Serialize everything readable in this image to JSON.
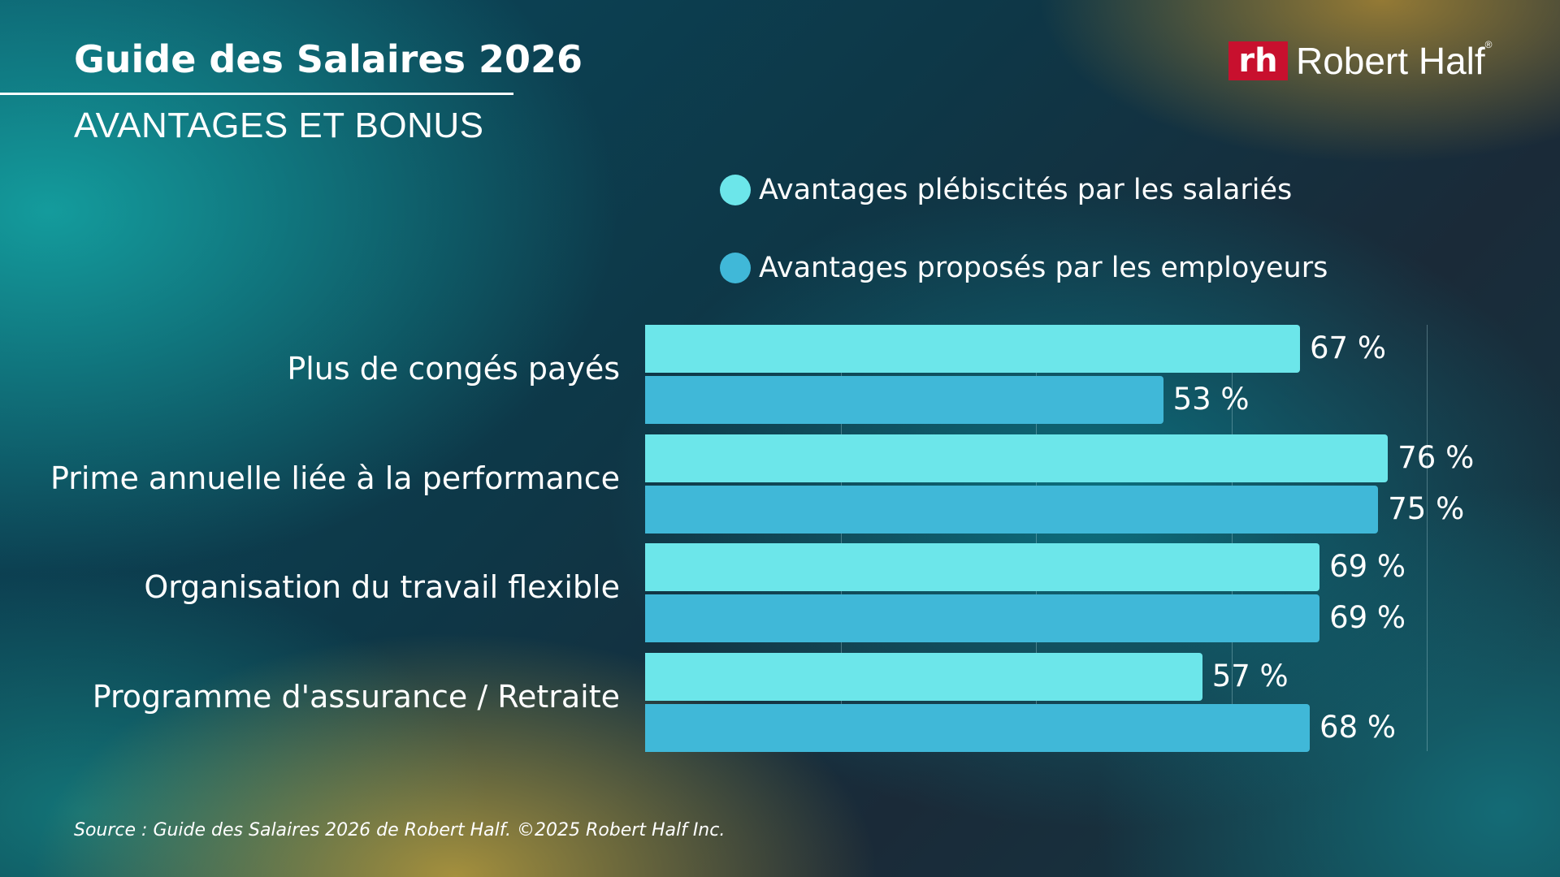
{
  "header": {
    "title": "Guide des Salaires 2026",
    "subtitle": "AVANTAGES ET BONUS"
  },
  "logo": {
    "mark": "rh",
    "name": "Robert Half",
    "registered": "®",
    "color": "#c8102e"
  },
  "chart_data": {
    "type": "bar",
    "orientation": "horizontal",
    "categories": [
      "Plus de congés payés",
      "Prime annuelle liée à la performance",
      "Organisation du travail flexible",
      "Programme d'assurance / Retraite"
    ],
    "series": [
      {
        "name": "Avantages plébiscités par les salariés",
        "color": "#6ce6ea",
        "values": [
          67,
          76,
          69,
          57
        ]
      },
      {
        "name": "Avantages proposés par les employeurs",
        "color": "#40b8d8",
        "values": [
          53,
          75,
          69,
          68
        ]
      }
    ],
    "value_suffix": " %",
    "xlim": [
      0,
      80
    ],
    "grid": true,
    "gridline_values": [
      0,
      20,
      40,
      60,
      80
    ],
    "legend_placement": "top"
  },
  "footer": {
    "source": "Source : Guide des Salaires 2026 de Robert Half. ©2025 Robert Half Inc."
  }
}
